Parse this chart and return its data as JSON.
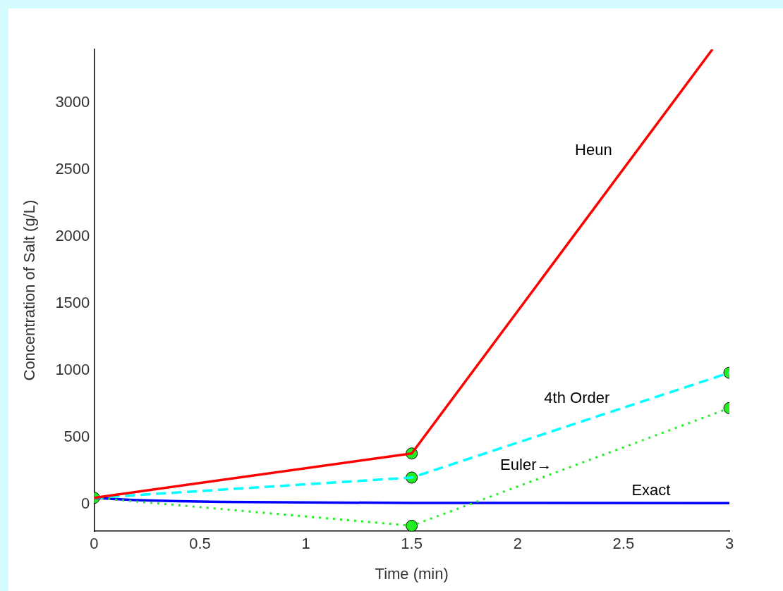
{
  "chart_data": {
    "type": "line",
    "xlabel": "Time (min)",
    "ylabel": "Concentration of Salt (g/L)",
    "xlim": [
      0,
      3
    ],
    "xticks": [
      0,
      0.5,
      1,
      1.5,
      2,
      2.5,
      3
    ],
    "ylim": [
      -200,
      3400
    ],
    "yticks": [
      0,
      500,
      1000,
      1500,
      2000,
      2500,
      3000
    ],
    "grid": false,
    "legend": false,
    "series": [
      {
        "name": "Heun",
        "color": "#ff0000",
        "x": [
          0,
          1.5,
          2.92
        ],
        "values": [
          50,
          381,
          3400
        ],
        "line_style": "solid",
        "marker": "none"
      },
      {
        "name": "4th Order",
        "color": "#00ffff",
        "x": [
          0,
          1.5,
          3
        ],
        "values": [
          50,
          201,
          984
        ],
        "line_style": "dashed",
        "marker": "none"
      },
      {
        "name": "Euler→",
        "color": "#22ee22",
        "x": [
          0,
          1.5,
          3
        ],
        "values": [
          50,
          -159,
          720
        ],
        "line_style": "dotted",
        "marker": "none"
      },
      {
        "name": "Exact",
        "color": "#0000ff",
        "x": [
          0,
          0.1,
          0.2,
          0.4,
          0.6,
          1,
          1.5,
          2,
          3
        ],
        "values": [
          50,
          40,
          33,
          25,
          20,
          15,
          12,
          11,
          10
        ],
        "line_style": "solid",
        "marker": "none"
      },
      {
        "type": "scatter",
        "color": "#22ee22",
        "x": [
          0,
          1.5,
          1.5,
          1.5,
          3,
          3
        ],
        "values": [
          50,
          381,
          201,
          -159,
          984,
          720
        ],
        "marker": "circle"
      }
    ]
  }
}
